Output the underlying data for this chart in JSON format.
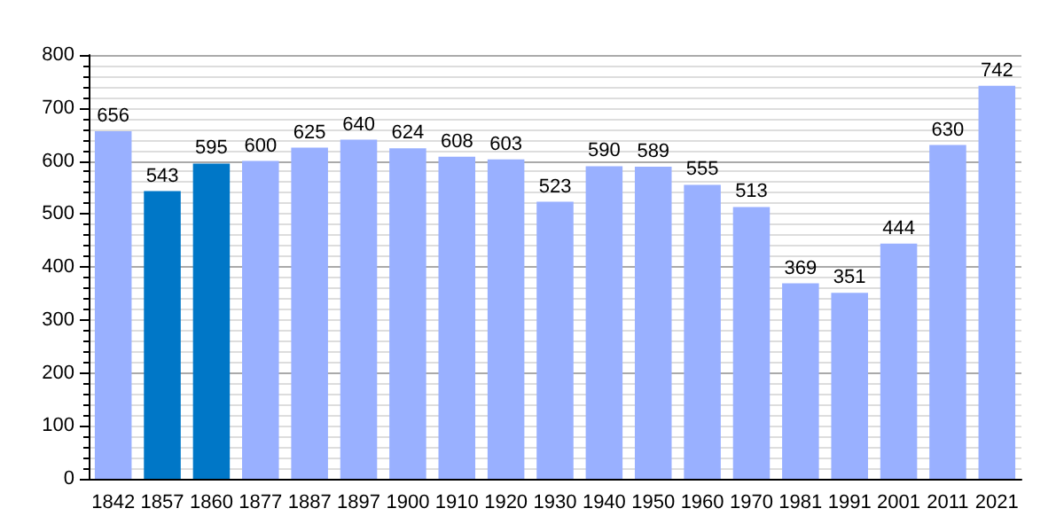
{
  "chart_data": {
    "type": "bar",
    "categories": [
      "1842",
      "1857",
      "1860",
      "1877",
      "1887",
      "1897",
      "1900",
      "1910",
      "1920",
      "1930",
      "1940",
      "1950",
      "1960",
      "1970",
      "1981",
      "1991",
      "2001",
      "2011",
      "2021"
    ],
    "values": [
      656,
      543,
      595,
      600,
      625,
      640,
      624,
      608,
      603,
      523,
      590,
      589,
      555,
      513,
      369,
      351,
      444,
      630,
      742
    ],
    "colors": [
      "#99b0ff",
      "#0077c7",
      "#0077c7",
      "#99b0ff",
      "#99b0ff",
      "#99b0ff",
      "#99b0ff",
      "#99b0ff",
      "#99b0ff",
      "#99b0ff",
      "#99b0ff",
      "#99b0ff",
      "#99b0ff",
      "#99b0ff",
      "#99b0ff",
      "#99b0ff",
      "#99b0ff",
      "#99b0ff",
      "#99b0ff"
    ],
    "ylim": [
      0,
      800
    ],
    "yticks": [
      0,
      100,
      200,
      300,
      400,
      500,
      600,
      700,
      800
    ],
    "grid": "y",
    "data_labels": true
  }
}
